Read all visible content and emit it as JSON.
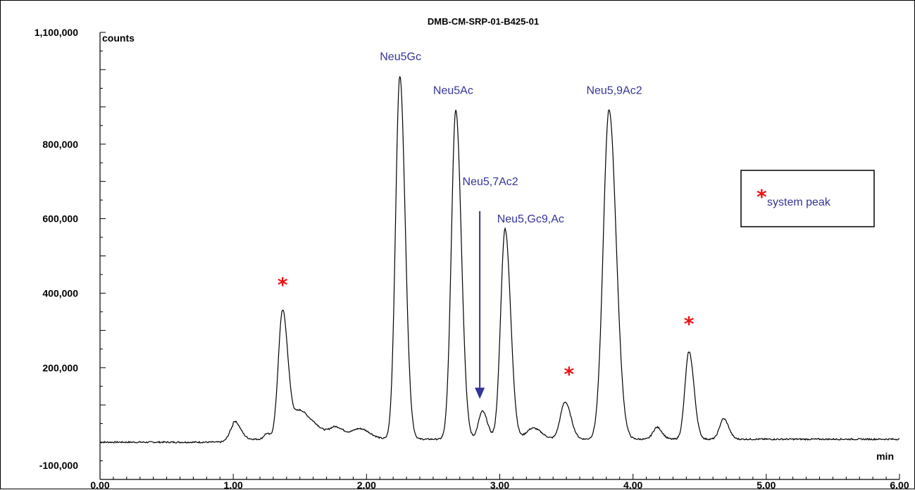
{
  "chart_data": {
    "type": "line",
    "title": "DMB-CM-SRP-01-B425-01",
    "ylabel": "counts",
    "xlabel": "min",
    "xlim": [
      0.0,
      6.0
    ],
    "ylim": [
      -100000,
      1100000
    ],
    "x_ticks": [
      "0.00",
      "1.00",
      "2.00",
      "3.00",
      "4.00",
      "5.00",
      "6.00"
    ],
    "x_tick_values": [
      0,
      1,
      2,
      3,
      4,
      5,
      6
    ],
    "y_ticks": [
      "1,100,000",
      "800,000",
      "600,000",
      "400,000",
      "200,000",
      "-100,000"
    ],
    "y_tick_values": [
      1100000,
      800000,
      600000,
      400000,
      200000,
      -100000
    ],
    "baseline": 0,
    "peaks": [
      {
        "x": 1.01,
        "height": 48000,
        "width": 0.035
      },
      {
        "x": 1.37,
        "height": 345000,
        "width": 0.032
      },
      {
        "x": 1.5,
        "height": 75000,
        "width": 0.05
      },
      {
        "x": 1.62,
        "height": 30000,
        "width": 0.05
      },
      {
        "x": 1.25,
        "height": 15000,
        "width": 0.02
      },
      {
        "x": 1.77,
        "height": 32000,
        "width": 0.05
      },
      {
        "x": 1.95,
        "height": 28000,
        "width": 0.06
      },
      {
        "x": 2.25,
        "height": 975000,
        "width": 0.032
      },
      {
        "x": 2.67,
        "height": 885000,
        "width": 0.033
      },
      {
        "x": 2.87,
        "height": 75000,
        "width": 0.03
      },
      {
        "x": 3.04,
        "height": 565000,
        "width": 0.033
      },
      {
        "x": 3.25,
        "height": 30000,
        "width": 0.05
      },
      {
        "x": 3.49,
        "height": 100000,
        "width": 0.035
      },
      {
        "x": 3.82,
        "height": 885000,
        "width": 0.043
      },
      {
        "x": 4.18,
        "height": 32000,
        "width": 0.03
      },
      {
        "x": 4.42,
        "height": 235000,
        "width": 0.03
      },
      {
        "x": 4.68,
        "height": 55000,
        "width": 0.03
      }
    ],
    "peak_labels": [
      {
        "text": "Neu5Gc",
        "x": 2.1,
        "y": 1025000
      },
      {
        "text": "Neu5Ac",
        "x": 2.5,
        "y": 935000
      },
      {
        "text": "Neu5,7Ac2",
        "x": 2.72,
        "y": 690000
      },
      {
        "text": "Neu5,Gc9,Ac",
        "x": 2.98,
        "y": 590000
      },
      {
        "text": "Neu5,9Ac2",
        "x": 3.65,
        "y": 935000
      }
    ],
    "arrow": {
      "x": 2.85,
      "y_from": 620000,
      "y_to": 120000
    },
    "system_peak_markers": [
      {
        "x": 1.37,
        "y": 405000
      },
      {
        "x": 3.52,
        "y": 165000
      },
      {
        "x": 4.42,
        "y": 300000
      }
    ],
    "legend": {
      "symbol": "*",
      "text": "system peak",
      "position": "right"
    },
    "colors": {
      "line": "#000000",
      "label": "#333399",
      "marker": "#ee1111"
    }
  }
}
